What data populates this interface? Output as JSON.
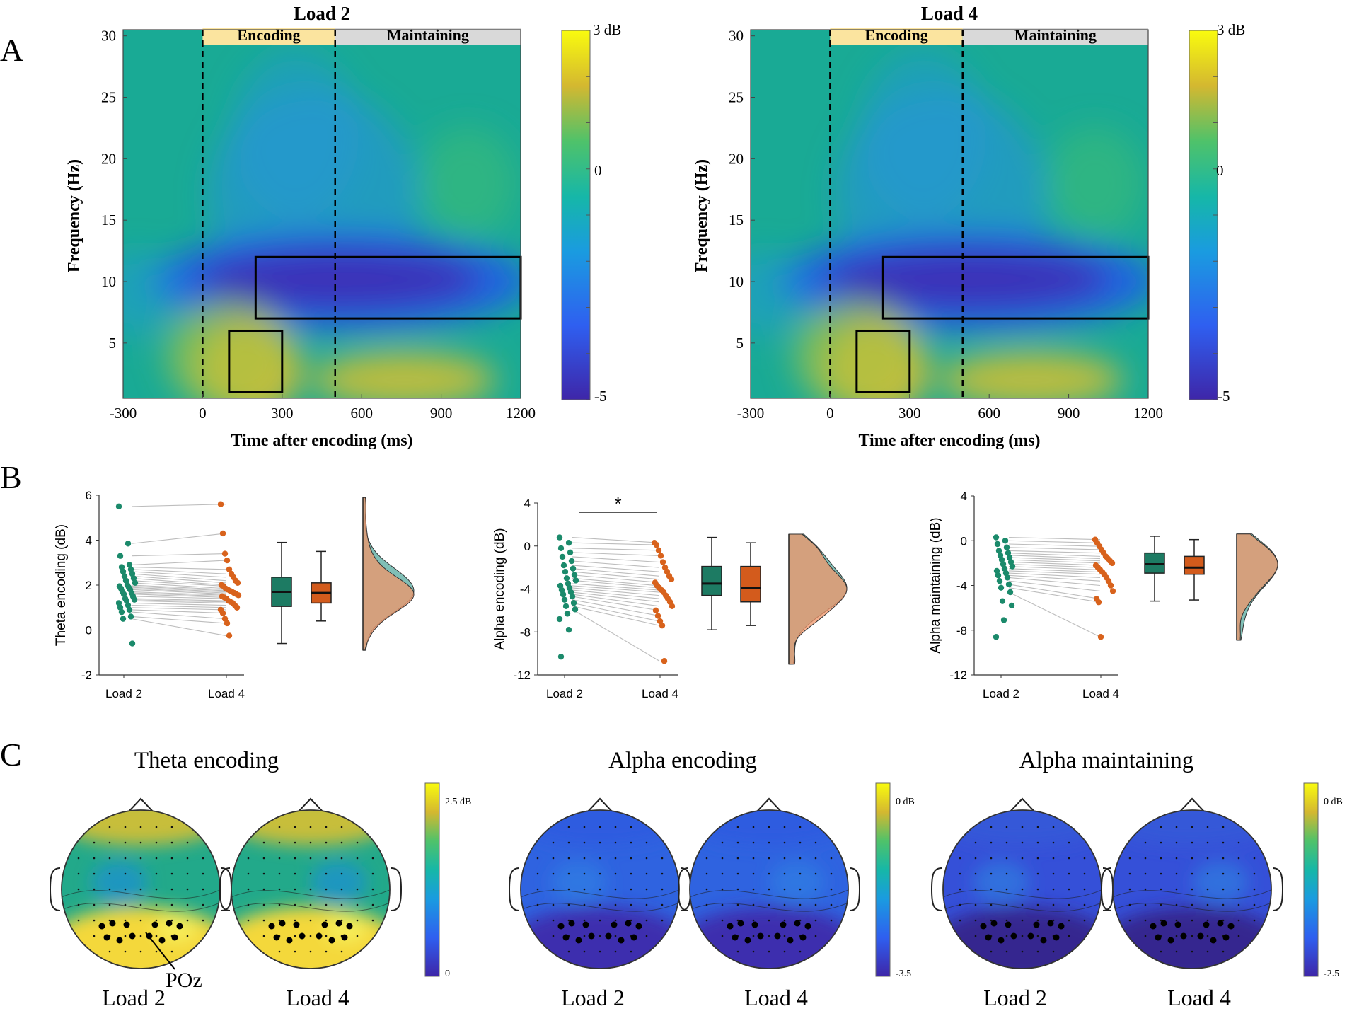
{
  "panel_letters": {
    "a": "A",
    "b": "B",
    "c": "C"
  },
  "colors": {
    "load2": "#1b8a6b",
    "load4": "#d8621c",
    "box2": "#1d7b63",
    "box4": "#d35b1c",
    "axis": "#333333"
  },
  "chart_data": [
    {
      "id": "tf-load2",
      "type": "heatmap",
      "title": "Load 2",
      "xlabel": "Time after encoding (ms)",
      "ylabel": "Frequency (Hz)",
      "xlim": [
        -300,
        1200
      ],
      "ylim": [
        0.5,
        30.5
      ],
      "xticks": [
        "-300",
        "0",
        "300",
        "600",
        "900",
        "1200"
      ],
      "yticks": [
        "5",
        "10",
        "15",
        "20",
        "25",
        "30"
      ],
      "periods": [
        "Encoding",
        "Maintaining"
      ],
      "markers_ms": [
        0,
        500
      ],
      "rois": [
        {
          "t": [
            100,
            300
          ],
          "f": [
            1,
            6
          ]
        },
        {
          "t": [
            200,
            1200
          ],
          "f": [
            7,
            12
          ]
        }
      ],
      "colorbar": {
        "max": "3 dB",
        "mid": "0",
        "min": "-5"
      }
    },
    {
      "id": "tf-load4",
      "type": "heatmap",
      "title": "Load 4",
      "xlabel": "Time after encoding (ms)",
      "ylabel": "Frequency (Hz)",
      "xlim": [
        -300,
        1200
      ],
      "ylim": [
        0.5,
        30.5
      ],
      "xticks": [
        "-300",
        "0",
        "300",
        "600",
        "900",
        "1200"
      ],
      "yticks": [
        "5",
        "10",
        "15",
        "20",
        "25",
        "30"
      ],
      "periods": [
        "Encoding",
        "Maintaining"
      ],
      "markers_ms": [
        0,
        500
      ],
      "rois": [
        {
          "t": [
            100,
            300
          ],
          "f": [
            1,
            6
          ]
        },
        {
          "t": [
            200,
            1200
          ],
          "f": [
            7,
            12
          ]
        }
      ],
      "colorbar": {
        "max": "3 dB",
        "mid": "0",
        "min": "-5"
      }
    },
    {
      "id": "rain-theta",
      "type": "scatter",
      "ylabel": "Theta encoding (dB)",
      "ylim": [
        -2,
        6
      ],
      "yticks": [
        "-2",
        "0",
        "2",
        "4",
        "6"
      ],
      "categories": [
        "Load 2",
        "Load 4"
      ],
      "series": [
        {
          "name": "Load 2",
          "values": [
            5.5,
            3.85,
            3.3,
            2.9,
            2.8,
            2.7,
            2.6,
            2.5,
            2.4,
            2.3,
            2.2,
            2.1,
            2.0,
            1.95,
            1.9,
            1.85,
            1.8,
            1.7,
            1.65,
            1.6,
            1.5,
            1.4,
            1.35,
            1.3,
            1.2,
            1.1,
            1.0,
            0.9,
            0.8,
            0.6,
            0.5,
            -0.6
          ]
        },
        {
          "name": "Load 4",
          "values": [
            5.6,
            4.3,
            3.4,
            3.1,
            2.7,
            2.5,
            2.35,
            2.2,
            2.1,
            2.0,
            1.95,
            1.85,
            1.8,
            1.75,
            1.7,
            1.65,
            1.6,
            1.55,
            1.5,
            1.45,
            1.4,
            1.3,
            1.25,
            1.2,
            1.1,
            1.0,
            0.9,
            0.75,
            0.5,
            0.3,
            -0.25
          ]
        }
      ],
      "box": [
        {
          "min": -0.6,
          "q1": 1.05,
          "median": 1.7,
          "q3": 2.35,
          "max": 3.9
        },
        {
          "min": 0.4,
          "q1": 1.2,
          "median": 1.65,
          "q3": 2.1,
          "max": 3.5
        }
      ],
      "density_mode": 1.7,
      "significance": ""
    },
    {
      "id": "rain-alpha-enc",
      "type": "scatter",
      "ylabel": "Alpha encoding (dB)",
      "ylim": [
        -12,
        4
      ],
      "yticks": [
        "-12",
        "-8",
        "-4",
        "0",
        "4"
      ],
      "categories": [
        "Load 2",
        "Load 4"
      ],
      "series": [
        {
          "name": "Load 2",
          "values": [
            0.8,
            0.3,
            -0.2,
            -0.6,
            -1.0,
            -1.4,
            -1.8,
            -2.1,
            -2.4,
            -2.7,
            -3.0,
            -3.2,
            -3.5,
            -3.7,
            -3.9,
            -4.1,
            -4.3,
            -4.5,
            -4.7,
            -5.0,
            -5.3,
            -5.6,
            -5.9,
            -6.3,
            -6.8,
            -7.8,
            -10.3
          ]
        },
        {
          "name": "Load 4",
          "values": [
            0.3,
            0.1,
            -0.4,
            -0.9,
            -1.5,
            -2.0,
            -2.4,
            -2.8,
            -3.1,
            -3.4,
            -3.7,
            -3.9,
            -4.1,
            -4.3,
            -4.6,
            -4.9,
            -5.2,
            -5.6,
            -6.0,
            -6.5,
            -7.0,
            -7.4,
            -10.7
          ]
        }
      ],
      "box": [
        {
          "min": -7.8,
          "q1": -4.6,
          "median": -3.5,
          "q3": -1.9,
          "max": 0.8
        },
        {
          "min": -7.4,
          "q1": -5.2,
          "median": -3.9,
          "q3": -1.9,
          "max": 0.3
        }
      ],
      "density_mode": -4.0,
      "significance": "*"
    },
    {
      "id": "rain-alpha-maint",
      "type": "scatter",
      "ylabel": "Alpha maintaining (dB)",
      "ylim": [
        -12,
        4
      ],
      "yticks": [
        "-12",
        "-8",
        "-4",
        "0",
        "4"
      ],
      "categories": [
        "Load 2",
        "Load 4"
      ],
      "series": [
        {
          "name": "Load 2",
          "values": [
            0.3,
            0.0,
            -0.3,
            -0.6,
            -0.9,
            -1.1,
            -1.3,
            -1.5,
            -1.7,
            -1.9,
            -2.1,
            -2.3,
            -2.5,
            -2.7,
            -2.9,
            -3.1,
            -3.3,
            -3.6,
            -3.9,
            -4.2,
            -4.6,
            -5.4,
            -5.8,
            -7.1,
            -8.6
          ]
        },
        {
          "name": "Load 4",
          "values": [
            0.1,
            -0.2,
            -0.5,
            -0.8,
            -1.1,
            -1.4,
            -1.6,
            -1.8,
            -2.0,
            -2.2,
            -2.4,
            -2.6,
            -2.8,
            -3.0,
            -3.3,
            -3.6,
            -4.0,
            -4.5,
            -5.2,
            -5.5,
            -8.6
          ]
        }
      ],
      "box": [
        {
          "min": -5.4,
          "q1": -2.9,
          "median": -2.1,
          "q3": -1.1,
          "max": 0.4
        },
        {
          "min": -5.3,
          "q1": -3.0,
          "median": -2.4,
          "q3": -1.4,
          "max": 0.1
        }
      ],
      "density_mode": -2.0,
      "significance": ""
    }
  ],
  "topo": [
    {
      "title": "Theta encoding",
      "labels": [
        "Load 2",
        "Load 4"
      ],
      "cbar_max": "2.5 dB",
      "cbar_min": "0",
      "theme": "theta",
      "annotation": "POz"
    },
    {
      "title": "Alpha encoding",
      "labels": [
        "Load 2",
        "Load 4"
      ],
      "cbar_max": "0 dB",
      "cbar_min": "-3.5",
      "theme": "alpha",
      "annotation": ""
    },
    {
      "title": "Alpha maintaining",
      "labels": [
        "Load 2",
        "Load 4"
      ],
      "cbar_max": "0 dB",
      "cbar_min": "-2.5",
      "theme": "alpha2",
      "annotation": ""
    }
  ]
}
